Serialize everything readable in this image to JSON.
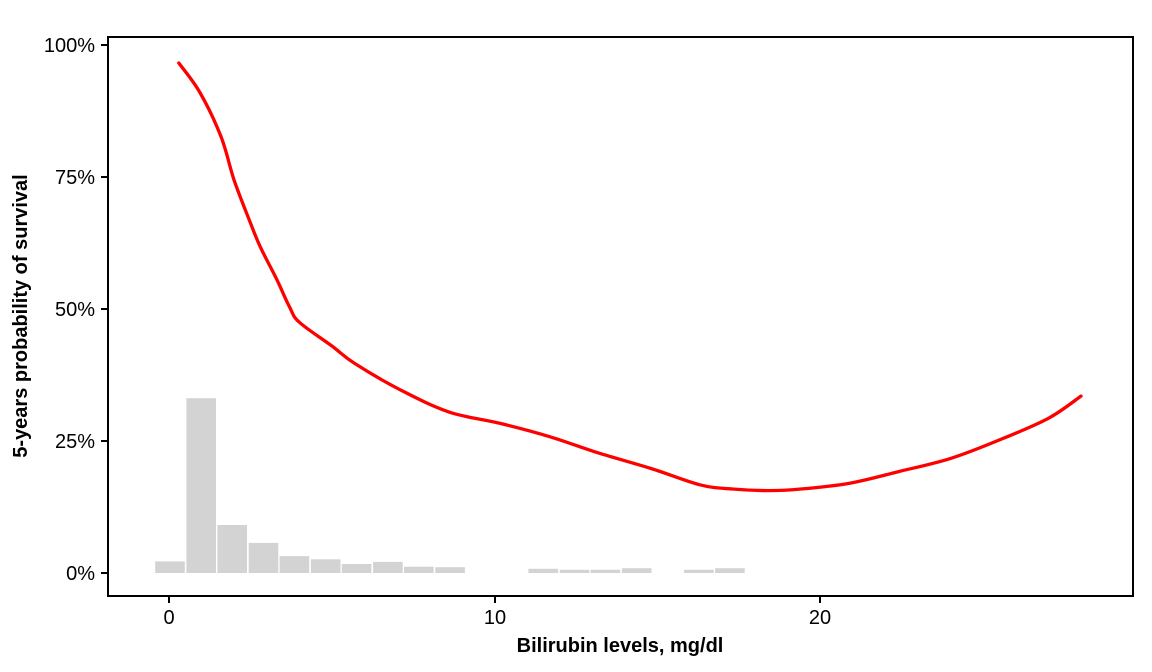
{
  "figure": {
    "kind": "survival-probability-plot",
    "background": "#ffffff"
  },
  "colors": {
    "curve": "#FF0000",
    "histogram_fill": "#D3D3D3",
    "axis": "#000000",
    "panel_border": "#000000"
  },
  "axes": {
    "x": {
      "title": "Bilirubin levels, mg/dl",
      "ticks": [
        {
          "label": "0",
          "value": 0
        },
        {
          "label": "10",
          "value": 10
        },
        {
          "label": "20",
          "value": 20
        }
      ]
    },
    "y": {
      "title": "5-years probability of survival",
      "ticks": [
        {
          "label": "0%",
          "value": 0
        },
        {
          "label": "25%",
          "value": 25
        },
        {
          "label": "50%",
          "value": 50
        },
        {
          "label": "75%",
          "value": 75
        },
        {
          "label": "100%",
          "value": 100
        }
      ]
    }
  },
  "chart_data": {
    "type": "line",
    "title": "",
    "xlabel": "Bilirubin levels, mg/dl",
    "ylabel": "5-years probability of survival",
    "xlim": [
      -1.9,
      29.6
    ],
    "ylim": [
      -4.4,
      101.5
    ],
    "x_ticks": [
      0,
      10,
      20
    ],
    "y_ticks_pct": [
      0,
      25,
      50,
      75,
      100
    ],
    "grid": false,
    "legend": "none",
    "series": [
      {
        "name": "smoothed 5-year survival probability",
        "geom": "smooth-line",
        "color": "#FF0000",
        "points": [
          [
            0.3,
            96.6
          ],
          [
            0.95,
            91.0
          ],
          [
            1.6,
            82.6
          ],
          [
            2.0,
            74.4
          ],
          [
            2.5,
            66.3
          ],
          [
            2.8,
            61.8
          ],
          [
            3.3,
            55.7
          ],
          [
            3.7,
            50.4
          ],
          [
            4.0,
            47.5
          ],
          [
            5.0,
            43.0
          ],
          [
            5.7,
            39.7
          ],
          [
            7.1,
            34.7
          ],
          [
            8.6,
            30.5
          ],
          [
            10.2,
            28.3
          ],
          [
            11.7,
            25.8
          ],
          [
            13.2,
            22.7
          ],
          [
            14.8,
            19.8
          ],
          [
            16.3,
            16.7
          ],
          [
            17.3,
            15.9
          ],
          [
            18.4,
            15.6
          ],
          [
            19.4,
            15.9
          ],
          [
            20.9,
            17.0
          ],
          [
            22.4,
            19.2
          ],
          [
            24.0,
            21.7
          ],
          [
            25.5,
            25.2
          ],
          [
            27.0,
            29.3
          ],
          [
            28.0,
            33.5
          ]
        ]
      },
      {
        "name": "bilirubin distribution histogram",
        "geom": "histogram",
        "color": "#D3D3D3",
        "binwidth": 0.955,
        "bars": [
          {
            "x": 0.03,
            "pct": 2.2
          },
          {
            "x": 0.99,
            "pct": 33.1
          },
          {
            "x": 1.94,
            "pct": 9.1
          },
          {
            "x": 2.9,
            "pct": 5.7
          },
          {
            "x": 3.85,
            "pct": 3.2
          },
          {
            "x": 4.81,
            "pct": 2.6
          },
          {
            "x": 5.76,
            "pct": 1.7
          },
          {
            "x": 6.72,
            "pct": 2.1
          },
          {
            "x": 7.67,
            "pct": 1.2
          },
          {
            "x": 8.63,
            "pct": 1.1
          },
          {
            "x": 11.49,
            "pct": 0.8
          },
          {
            "x": 12.45,
            "pct": 0.6
          },
          {
            "x": 13.4,
            "pct": 0.6
          },
          {
            "x": 14.36,
            "pct": 0.9
          },
          {
            "x": 16.27,
            "pct": 0.6
          },
          {
            "x": 17.22,
            "pct": 0.9
          }
        ]
      }
    ]
  }
}
